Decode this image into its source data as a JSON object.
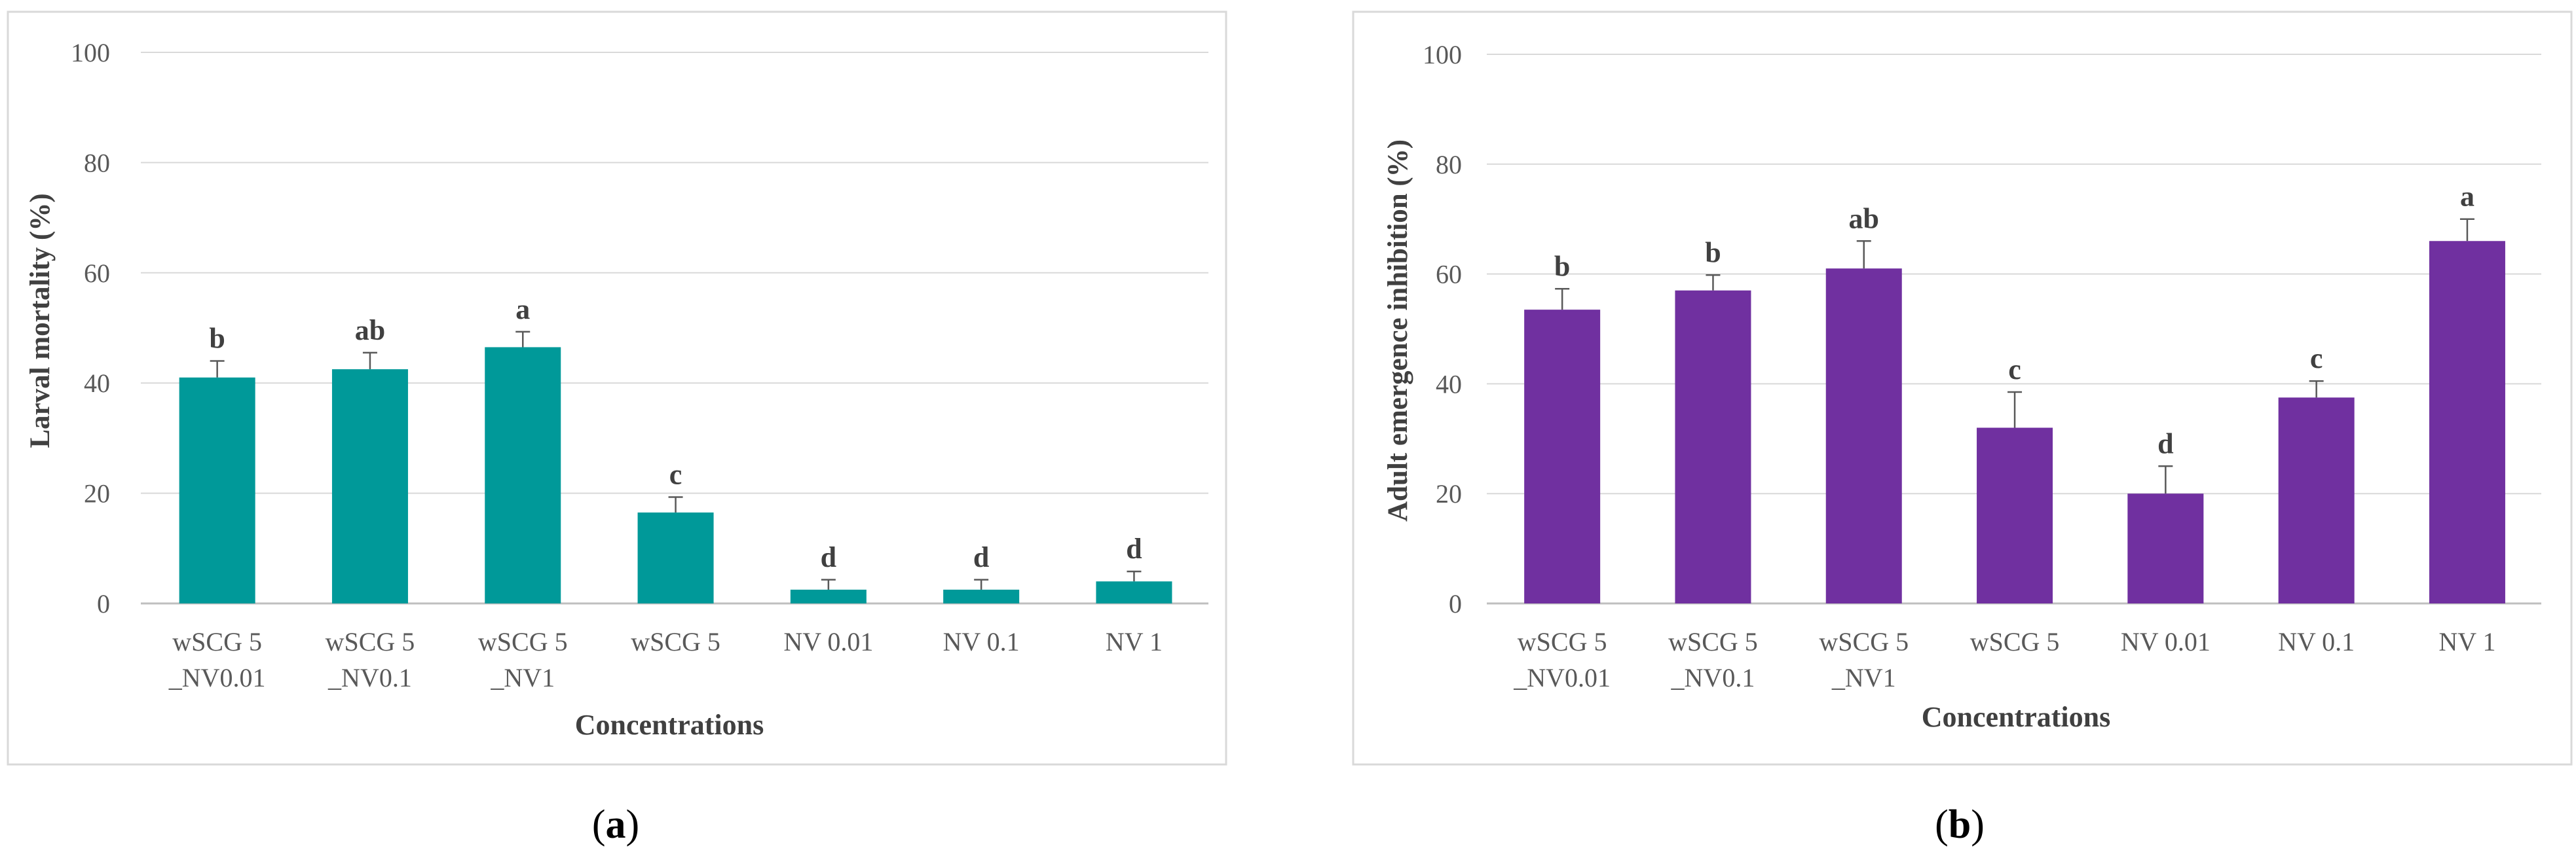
{
  "chart_data": [
    {
      "type": "bar",
      "panel_label": "a",
      "title": "",
      "xlabel": "Concentrations",
      "ylabel": "Larval mortality (%)",
      "ylim": [
        0,
        100
      ],
      "yticks": [
        0,
        20,
        40,
        60,
        80,
        100
      ],
      "grid": true,
      "color": "#009999",
      "categories": [
        [
          "wSCG 5",
          "_NV0.01"
        ],
        [
          "wSCG 5",
          "_NV0.1"
        ],
        [
          "wSCG 5",
          "_NV1"
        ],
        [
          "wSCG 5"
        ],
        [
          "NV 0.01"
        ],
        [
          "NV 0.1"
        ],
        [
          "NV 1"
        ]
      ],
      "values": [
        41,
        42.5,
        46.5,
        16.5,
        2.5,
        2.5,
        4
      ],
      "errors": [
        3,
        3,
        2.8,
        2.8,
        1.8,
        1.8,
        1.8
      ],
      "letters": [
        "b",
        "ab",
        "a",
        "c",
        "d",
        "d",
        "d"
      ]
    },
    {
      "type": "bar",
      "panel_label": "b",
      "title": "",
      "xlabel": "Concentrations",
      "ylabel": "Adult emergence inhibition (%)",
      "ylim": [
        0,
        100
      ],
      "yticks": [
        0,
        20,
        40,
        60,
        80,
        100
      ],
      "grid": true,
      "color": "#7030A0",
      "categories": [
        [
          "wSCG 5",
          "_NV0.01"
        ],
        [
          "wSCG 5",
          "_NV0.1"
        ],
        [
          "wSCG 5",
          "_NV1"
        ],
        [
          "wSCG 5"
        ],
        [
          "NV 0.01"
        ],
        [
          "NV 0.1"
        ],
        [
          "NV 1"
        ]
      ],
      "values": [
        53.5,
        57,
        61,
        32,
        20,
        37.5,
        66
      ],
      "errors": [
        3.8,
        2.8,
        5,
        6.5,
        5,
        3,
        4
      ],
      "letters": [
        "b",
        "b",
        "ab",
        "c",
        "d",
        "c",
        "a"
      ]
    }
  ]
}
